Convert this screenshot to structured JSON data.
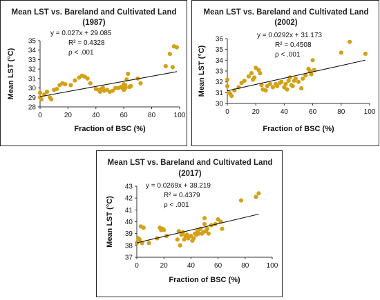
{
  "chart_data": [
    {
      "type": "scatter",
      "title": "Mean LST vs. Bareland and Cultivated Land",
      "subtitle": "(1987)",
      "xlabel": "Fraction of BSC (%)",
      "ylabel": "Mean LST (°C)",
      "xlim": [
        0,
        100
      ],
      "ylim": [
        28,
        35
      ],
      "xticks": [
        "0",
        "20",
        "40",
        "60",
        "80",
        "100"
      ],
      "yticks": [
        "28",
        "29",
        "30",
        "31",
        "32",
        "33",
        "34",
        "35"
      ],
      "annotations": [
        "y = 0.027x + 29.085",
        "R² = 0.4328",
        "ρ < .001"
      ],
      "trendline": {
        "slope": 0.027,
        "intercept": 29.085
      },
      "marker_color": "#d4a017",
      "series": [
        {
          "x": [
            0,
            0,
            1,
            3,
            5,
            7,
            8,
            10,
            12,
            14,
            16,
            18,
            22,
            25,
            28,
            30,
            32,
            34,
            36,
            40,
            42,
            43,
            44,
            45,
            46,
            48,
            50,
            52,
            54,
            56,
            58,
            59,
            60,
            60,
            61,
            61,
            62,
            63,
            64,
            65,
            70,
            72,
            90,
            93,
            95,
            96,
            98
          ],
          "y": [
            29.5,
            29.0,
            28.8,
            29.3,
            29.6,
            29.0,
            28.8,
            29.8,
            29.9,
            30.3,
            30.5,
            30.4,
            30.3,
            30.8,
            31.1,
            31.3,
            31.2,
            31.0,
            30.5,
            29.9,
            29.8,
            29.6,
            29.9,
            30.0,
            29.7,
            29.8,
            29.6,
            29.7,
            30.0,
            30.0,
            30.1,
            30.0,
            29.8,
            30.4,
            30.0,
            30.3,
            30.9,
            31.5,
            30.1,
            30.2,
            31.0,
            30.5,
            32.3,
            33.6,
            32.2,
            34.4,
            34.3
          ]
        }
      ]
    },
    {
      "type": "scatter",
      "title": "Mean LST vs. Bareland and Cultivated Land",
      "subtitle": "(2002)",
      "xlabel": "Fraction of BSC (%)",
      "ylabel": "Mean LST (°C)",
      "xlim": [
        0,
        100
      ],
      "ylim": [
        30,
        36
      ],
      "xticks": [
        "0",
        "20",
        "40",
        "60",
        "80",
        "100"
      ],
      "yticks": [
        "30",
        "31",
        "32",
        "33",
        "34",
        "35",
        "36"
      ],
      "annotations": [
        "y = 0.0292x + 31.173",
        "R² = 0.4508",
        "ρ < .001"
      ],
      "trendline": {
        "slope": 0.0292,
        "intercept": 31.173
      },
      "marker_color": "#d4a017",
      "series": [
        {
          "x": [
            0,
            0,
            1,
            2,
            3,
            5,
            8,
            10,
            12,
            15,
            17,
            18,
            19,
            20,
            22,
            23,
            24,
            25,
            27,
            28,
            30,
            32,
            34,
            35,
            37,
            38,
            40,
            41,
            42,
            43,
            44,
            45,
            46,
            47,
            48,
            50,
            52,
            53,
            55,
            57,
            58,
            59,
            60,
            61,
            80,
            86,
            97
          ],
          "y": [
            31.6,
            32.2,
            31.0,
            30.9,
            30.7,
            31.2,
            31.5,
            31.9,
            32.1,
            32.5,
            32.8,
            32.2,
            32.4,
            33.3,
            33.1,
            32.8,
            31.7,
            31.3,
            31.2,
            31.6,
            31.8,
            31.5,
            31.8,
            31.6,
            31.9,
            32.0,
            31.5,
            31.8,
            31.3,
            32.1,
            32.4,
            31.7,
            31.6,
            32.1,
            32.3,
            32.0,
            31.4,
            32.3,
            32.6,
            33.2,
            33.0,
            32.7,
            34.0,
            33.1,
            34.7,
            35.7,
            34.6
          ]
        }
      ]
    },
    {
      "type": "scatter",
      "title": "Mean LST vs. Bareland and Cultivated Land",
      "subtitle": "(2017)",
      "xlabel": "Fraction of BSC (%)",
      "ylabel": "Mean LST (°C)",
      "xlim": [
        0,
        100
      ],
      "ylim": [
        37,
        43
      ],
      "xticks": [
        "0",
        "20",
        "40",
        "60",
        "80",
        "100"
      ],
      "yticks": [
        "37",
        "38",
        "39",
        "40",
        "41",
        "42",
        "43"
      ],
      "annotations": [
        "y = 0.0269x + 38.219",
        "R² = 0.4379",
        "ρ < .001"
      ],
      "trendline": {
        "slope": 0.0269,
        "intercept": 38.219
      },
      "marker_color": "#d4a017",
      "series": [
        {
          "x": [
            0,
            1,
            2,
            3,
            4,
            5,
            9,
            15,
            17,
            18,
            19,
            20,
            22,
            30,
            31,
            32,
            33,
            34,
            35,
            36,
            37,
            38,
            40,
            41,
            42,
            43,
            44,
            45,
            46,
            47,
            48,
            49,
            50,
            50,
            51,
            52,
            53,
            55,
            58,
            60,
            62,
            63,
            77,
            88,
            90
          ],
          "y": [
            38.2,
            38.6,
            38.5,
            39.6,
            38.2,
            39.5,
            38.2,
            38.6,
            39.5,
            39.3,
            39.4,
            39.3,
            38.8,
            38.5,
            39.2,
            38.0,
            38.9,
            39.1,
            38.5,
            38.8,
            38.9,
            38.6,
            38.8,
            38.4,
            38.6,
            39.0,
            38.9,
            39.2,
            39.0,
            39.4,
            39.0,
            39.1,
            39.8,
            40.3,
            39.2,
            39.4,
            39.0,
            39.7,
            39.8,
            40.2,
            40.0,
            39.4,
            41.8,
            42.1,
            42.4
          ]
        }
      ]
    }
  ]
}
